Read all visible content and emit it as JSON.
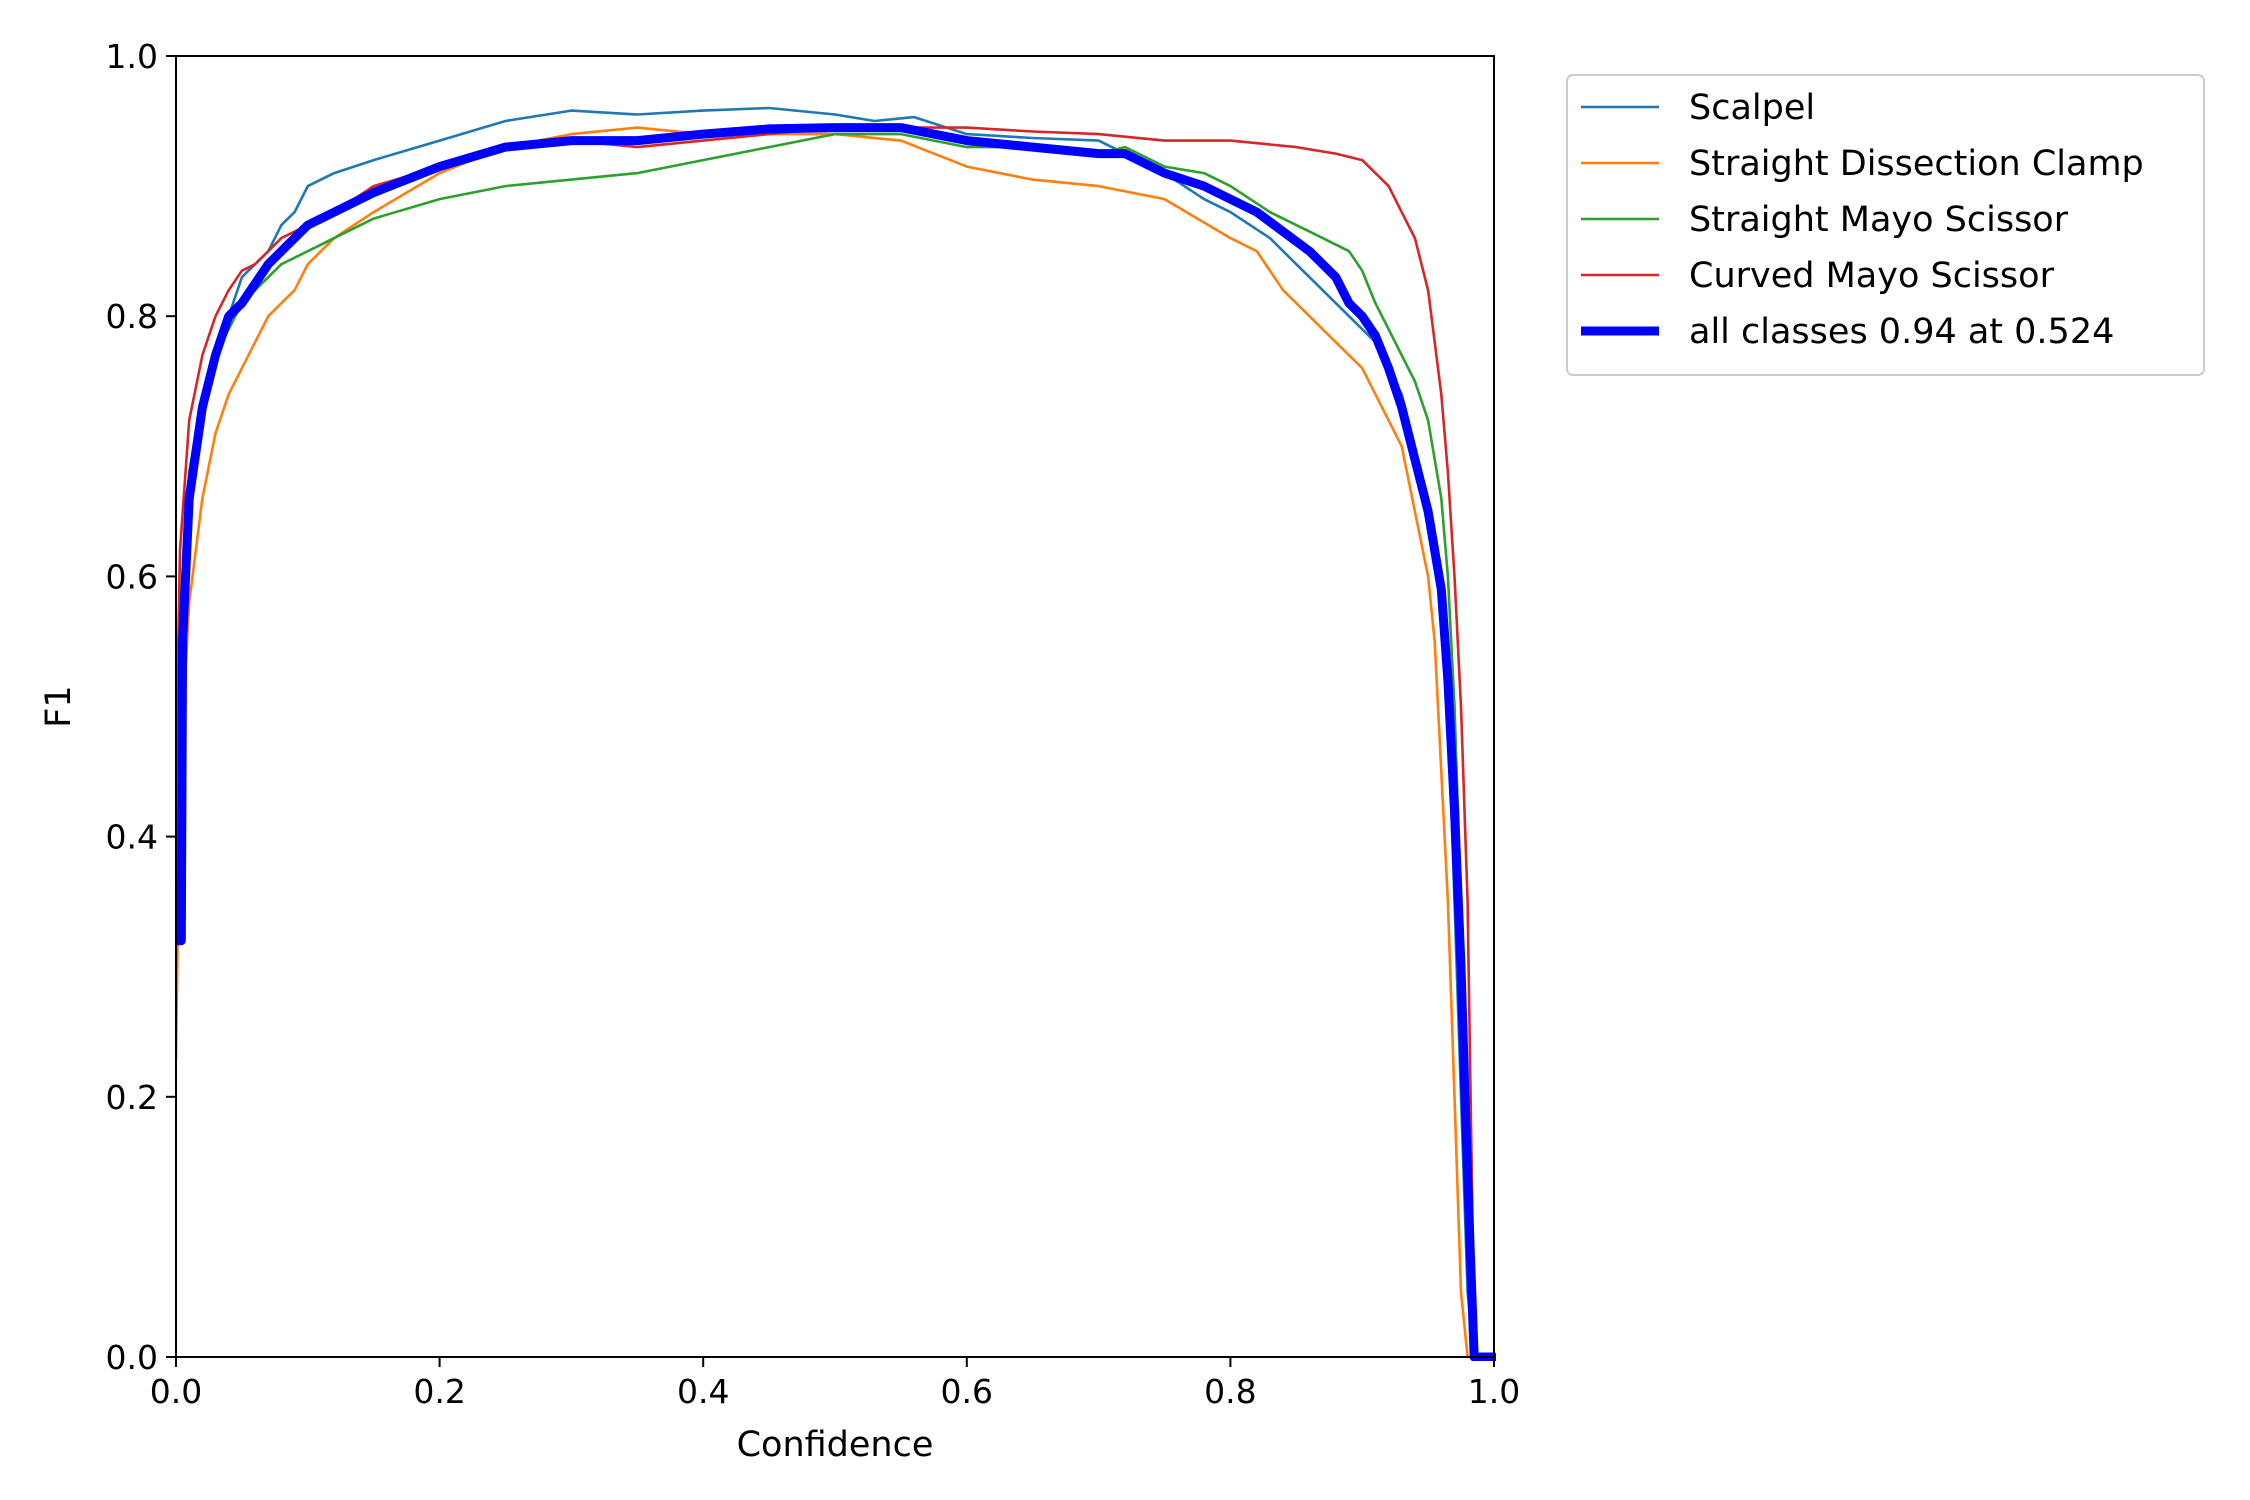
{
  "chart_data": {
    "type": "line",
    "xlabel": "Confidence",
    "ylabel": "F1",
    "xlim": [
      0.0,
      1.0
    ],
    "ylim": [
      0.0,
      1.0
    ],
    "x_ticks": [
      "0.0",
      "0.2",
      "0.4",
      "0.6",
      "0.8",
      "1.0"
    ],
    "y_ticks": [
      "0.0",
      "0.2",
      "0.4",
      "0.6",
      "0.8",
      "1.0"
    ],
    "grid": false,
    "legend_position": "outside-top-right",
    "series": [
      {
        "name": "Scalpel",
        "color": "#1f77b4",
        "bold": false,
        "points": [
          [
            0.0,
            0.3
          ],
          [
            0.003,
            0.55
          ],
          [
            0.01,
            0.66
          ],
          [
            0.02,
            0.73
          ],
          [
            0.03,
            0.77
          ],
          [
            0.04,
            0.8
          ],
          [
            0.05,
            0.83
          ],
          [
            0.06,
            0.84
          ],
          [
            0.07,
            0.85
          ],
          [
            0.08,
            0.87
          ],
          [
            0.09,
            0.88
          ],
          [
            0.1,
            0.9
          ],
          [
            0.12,
            0.91
          ],
          [
            0.15,
            0.92
          ],
          [
            0.2,
            0.935
          ],
          [
            0.25,
            0.95
          ],
          [
            0.3,
            0.958
          ],
          [
            0.35,
            0.955
          ],
          [
            0.4,
            0.958
          ],
          [
            0.45,
            0.96
          ],
          [
            0.5,
            0.955
          ],
          [
            0.53,
            0.95
          ],
          [
            0.56,
            0.953
          ],
          [
            0.6,
            0.94
          ],
          [
            0.65,
            0.937
          ],
          [
            0.7,
            0.935
          ],
          [
            0.75,
            0.91
          ],
          [
            0.78,
            0.89
          ],
          [
            0.8,
            0.88
          ],
          [
            0.83,
            0.86
          ],
          [
            0.85,
            0.84
          ],
          [
            0.87,
            0.82
          ],
          [
            0.89,
            0.8
          ],
          [
            0.91,
            0.78
          ],
          [
            0.92,
            0.76
          ],
          [
            0.93,
            0.74
          ],
          [
            0.94,
            0.7
          ],
          [
            0.95,
            0.65
          ],
          [
            0.96,
            0.58
          ],
          [
            0.965,
            0.5
          ],
          [
            0.97,
            0.35
          ],
          [
            0.975,
            0.2
          ],
          [
            0.98,
            0.05
          ],
          [
            0.985,
            0.0
          ],
          [
            1.0,
            0.0
          ]
        ]
      },
      {
        "name": "Straight Dissection Clamp",
        "color": "#ff7f0e",
        "bold": false,
        "points": [
          [
            0.0,
            0.23
          ],
          [
            0.003,
            0.45
          ],
          [
            0.01,
            0.58
          ],
          [
            0.02,
            0.66
          ],
          [
            0.03,
            0.71
          ],
          [
            0.04,
            0.74
          ],
          [
            0.05,
            0.76
          ],
          [
            0.06,
            0.78
          ],
          [
            0.07,
            0.8
          ],
          [
            0.08,
            0.81
          ],
          [
            0.09,
            0.82
          ],
          [
            0.1,
            0.84
          ],
          [
            0.12,
            0.86
          ],
          [
            0.15,
            0.88
          ],
          [
            0.2,
            0.91
          ],
          [
            0.25,
            0.93
          ],
          [
            0.3,
            0.94
          ],
          [
            0.35,
            0.945
          ],
          [
            0.4,
            0.94
          ],
          [
            0.45,
            0.94
          ],
          [
            0.5,
            0.94
          ],
          [
            0.55,
            0.935
          ],
          [
            0.6,
            0.915
          ],
          [
            0.65,
            0.905
          ],
          [
            0.7,
            0.9
          ],
          [
            0.75,
            0.89
          ],
          [
            0.8,
            0.86
          ],
          [
            0.82,
            0.85
          ],
          [
            0.84,
            0.82
          ],
          [
            0.86,
            0.8
          ],
          [
            0.88,
            0.78
          ],
          [
            0.9,
            0.76
          ],
          [
            0.91,
            0.74
          ],
          [
            0.92,
            0.72
          ],
          [
            0.93,
            0.7
          ],
          [
            0.94,
            0.65
          ],
          [
            0.95,
            0.6
          ],
          [
            0.955,
            0.55
          ],
          [
            0.96,
            0.45
          ],
          [
            0.965,
            0.35
          ],
          [
            0.97,
            0.2
          ],
          [
            0.975,
            0.05
          ],
          [
            0.98,
            0.0
          ],
          [
            1.0,
            0.0
          ]
        ]
      },
      {
        "name": "Straight Mayo Scissor",
        "color": "#2ca02c",
        "bold": false,
        "points": [
          [
            0.0,
            0.3
          ],
          [
            0.003,
            0.55
          ],
          [
            0.01,
            0.68
          ],
          [
            0.02,
            0.74
          ],
          [
            0.03,
            0.77
          ],
          [
            0.04,
            0.79
          ],
          [
            0.05,
            0.81
          ],
          [
            0.06,
            0.82
          ],
          [
            0.07,
            0.83
          ],
          [
            0.08,
            0.84
          ],
          [
            0.1,
            0.85
          ],
          [
            0.12,
            0.86
          ],
          [
            0.15,
            0.875
          ],
          [
            0.2,
            0.89
          ],
          [
            0.25,
            0.9
          ],
          [
            0.3,
            0.905
          ],
          [
            0.35,
            0.91
          ],
          [
            0.4,
            0.92
          ],
          [
            0.45,
            0.93
          ],
          [
            0.5,
            0.94
          ],
          [
            0.55,
            0.94
          ],
          [
            0.6,
            0.93
          ],
          [
            0.65,
            0.93
          ],
          [
            0.7,
            0.925
          ],
          [
            0.72,
            0.93
          ],
          [
            0.75,
            0.915
          ],
          [
            0.78,
            0.91
          ],
          [
            0.8,
            0.9
          ],
          [
            0.83,
            0.88
          ],
          [
            0.85,
            0.87
          ],
          [
            0.87,
            0.86
          ],
          [
            0.89,
            0.85
          ],
          [
            0.9,
            0.835
          ],
          [
            0.91,
            0.81
          ],
          [
            0.92,
            0.79
          ],
          [
            0.93,
            0.77
          ],
          [
            0.94,
            0.75
          ],
          [
            0.95,
            0.72
          ],
          [
            0.96,
            0.66
          ],
          [
            0.965,
            0.6
          ],
          [
            0.97,
            0.5
          ],
          [
            0.975,
            0.35
          ],
          [
            0.98,
            0.15
          ],
          [
            0.985,
            0.0
          ],
          [
            1.0,
            0.0
          ]
        ]
      },
      {
        "name": "Curved Mayo Scissor",
        "color": "#d62728",
        "bold": false,
        "points": [
          [
            0.0,
            0.45
          ],
          [
            0.003,
            0.62
          ],
          [
            0.01,
            0.72
          ],
          [
            0.02,
            0.77
          ],
          [
            0.03,
            0.8
          ],
          [
            0.04,
            0.82
          ],
          [
            0.05,
            0.835
          ],
          [
            0.06,
            0.84
          ],
          [
            0.07,
            0.85
          ],
          [
            0.08,
            0.86
          ],
          [
            0.1,
            0.87
          ],
          [
            0.12,
            0.88
          ],
          [
            0.15,
            0.9
          ],
          [
            0.2,
            0.915
          ],
          [
            0.25,
            0.93
          ],
          [
            0.3,
            0.935
          ],
          [
            0.35,
            0.93
          ],
          [
            0.4,
            0.935
          ],
          [
            0.45,
            0.94
          ],
          [
            0.5,
            0.945
          ],
          [
            0.55,
            0.945
          ],
          [
            0.6,
            0.945
          ],
          [
            0.65,
            0.942
          ],
          [
            0.7,
            0.94
          ],
          [
            0.75,
            0.935
          ],
          [
            0.8,
            0.935
          ],
          [
            0.85,
            0.93
          ],
          [
            0.88,
            0.925
          ],
          [
            0.9,
            0.92
          ],
          [
            0.91,
            0.91
          ],
          [
            0.92,
            0.9
          ],
          [
            0.93,
            0.88
          ],
          [
            0.94,
            0.86
          ],
          [
            0.95,
            0.82
          ],
          [
            0.955,
            0.78
          ],
          [
            0.96,
            0.74
          ],
          [
            0.965,
            0.68
          ],
          [
            0.97,
            0.6
          ],
          [
            0.975,
            0.5
          ],
          [
            0.98,
            0.35
          ],
          [
            0.983,
            0.15
          ],
          [
            0.985,
            0.0
          ],
          [
            1.0,
            0.0
          ]
        ]
      },
      {
        "name": "all classes 0.94 at 0.524",
        "color": "#0000ff",
        "bold": true,
        "points": [
          [
            0.0,
            0.32
          ],
          [
            0.004,
            0.32
          ],
          [
            0.005,
            0.55
          ],
          [
            0.01,
            0.66
          ],
          [
            0.02,
            0.73
          ],
          [
            0.03,
            0.77
          ],
          [
            0.04,
            0.8
          ],
          [
            0.05,
            0.81
          ],
          [
            0.06,
            0.825
          ],
          [
            0.07,
            0.84
          ],
          [
            0.08,
            0.85
          ],
          [
            0.09,
            0.86
          ],
          [
            0.1,
            0.87
          ],
          [
            0.12,
            0.88
          ],
          [
            0.15,
            0.895
          ],
          [
            0.2,
            0.915
          ],
          [
            0.25,
            0.93
          ],
          [
            0.3,
            0.935
          ],
          [
            0.35,
            0.935
          ],
          [
            0.4,
            0.94
          ],
          [
            0.45,
            0.944
          ],
          [
            0.5,
            0.945
          ],
          [
            0.524,
            0.945
          ],
          [
            0.55,
            0.945
          ],
          [
            0.6,
            0.935
          ],
          [
            0.65,
            0.93
          ],
          [
            0.7,
            0.925
          ],
          [
            0.72,
            0.925
          ],
          [
            0.75,
            0.91
          ],
          [
            0.78,
            0.9
          ],
          [
            0.8,
            0.89
          ],
          [
            0.82,
            0.88
          ],
          [
            0.84,
            0.865
          ],
          [
            0.86,
            0.85
          ],
          [
            0.88,
            0.83
          ],
          [
            0.89,
            0.81
          ],
          [
            0.9,
            0.8
          ],
          [
            0.91,
            0.785
          ],
          [
            0.92,
            0.76
          ],
          [
            0.93,
            0.73
          ],
          [
            0.94,
            0.69
          ],
          [
            0.95,
            0.65
          ],
          [
            0.96,
            0.59
          ],
          [
            0.965,
            0.52
          ],
          [
            0.97,
            0.42
          ],
          [
            0.975,
            0.3
          ],
          [
            0.978,
            0.2
          ],
          [
            0.982,
            0.08
          ],
          [
            0.985,
            0.0
          ],
          [
            1.0,
            0.0
          ]
        ]
      }
    ]
  }
}
